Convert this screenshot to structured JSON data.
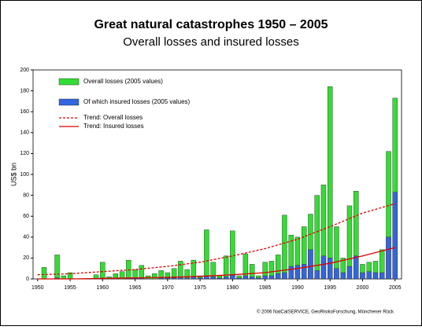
{
  "chart_data": {
    "type": "bar",
    "title": "Great natural catastrophes 1950 – 2005",
    "subtitle": "Overall losses and insured losses",
    "y_label": "US$ bn",
    "footer": "© 2006 NatCatSERVICE, GeoRisikoForschung, Münchener Rück",
    "x": [
      1950,
      1951,
      1952,
      1953,
      1954,
      1955,
      1956,
      1957,
      1958,
      1959,
      1960,
      1961,
      1962,
      1963,
      1964,
      1965,
      1966,
      1967,
      1968,
      1969,
      1970,
      1971,
      1972,
      1973,
      1974,
      1975,
      1976,
      1977,
      1978,
      1979,
      1980,
      1981,
      1982,
      1983,
      1984,
      1985,
      1986,
      1987,
      1988,
      1989,
      1990,
      1991,
      1992,
      1993,
      1994,
      1995,
      1996,
      1997,
      1998,
      1999,
      2000,
      2001,
      2002,
      2003,
      2004,
      2005
    ],
    "series": [
      {
        "name": "Overall losses (2005 values)",
        "color": "#33dd33",
        "values": [
          0,
          11,
          0,
          23,
          3,
          6,
          0,
          0,
          0,
          4,
          16,
          2,
          5,
          7,
          18,
          9,
          13,
          3,
          5,
          8,
          6,
          10,
          17,
          9,
          18,
          3,
          47,
          16,
          3,
          22,
          46,
          3,
          24,
          14,
          3,
          16,
          17,
          23,
          61,
          42,
          40,
          50,
          62,
          80,
          90,
          184,
          50,
          20,
          70,
          84,
          14,
          16,
          17,
          28,
          122,
          173
        ]
      },
      {
        "name": "Of which insured losses (2005 values)",
        "color": "#3366dd",
        "values": [
          0,
          0,
          0,
          1,
          0,
          0,
          0,
          0,
          0,
          0,
          1,
          0,
          0,
          0,
          1,
          1,
          1,
          0,
          0,
          1,
          1,
          1,
          2,
          1,
          2,
          1,
          3,
          2,
          1,
          2,
          4,
          1,
          3,
          2,
          1,
          3,
          3,
          5,
          6,
          12,
          13,
          14,
          28,
          8,
          22,
          20,
          10,
          6,
          12,
          22,
          6,
          7,
          6,
          6,
          40,
          83
        ]
      }
    ],
    "trends": [
      {
        "name": "Trend: Overall losses",
        "color": "#dd0000",
        "dashed": true,
        "x": [
          1950,
          1955,
          1960,
          1965,
          1970,
          1975,
          1980,
          1985,
          1990,
          1995,
          2000,
          2005
        ],
        "values": [
          4,
          5,
          7,
          9,
          12,
          16,
          22,
          29,
          38,
          50,
          63,
          72
        ]
      },
      {
        "name": "Trend: Insured losses",
        "color": "#dd0000",
        "dashed": false,
        "x": [
          1950,
          1955,
          1960,
          1965,
          1970,
          1975,
          1980,
          1985,
          1990,
          1995,
          2000,
          2005
        ],
        "values": [
          0,
          0,
          0.5,
          1,
          1.5,
          2.5,
          4,
          6,
          10,
          15,
          22,
          30
        ]
      }
    ],
    "xlim": [
      1949.3,
      2006
    ],
    "xticks": [
      1950,
      1955,
      1960,
      1965,
      1970,
      1975,
      1980,
      1985,
      1990,
      1995,
      2000,
      2005
    ],
    "ylim": [
      0,
      200
    ],
    "yticks": [
      0,
      20,
      40,
      60,
      80,
      100,
      120,
      140,
      160,
      180,
      200
    ]
  }
}
